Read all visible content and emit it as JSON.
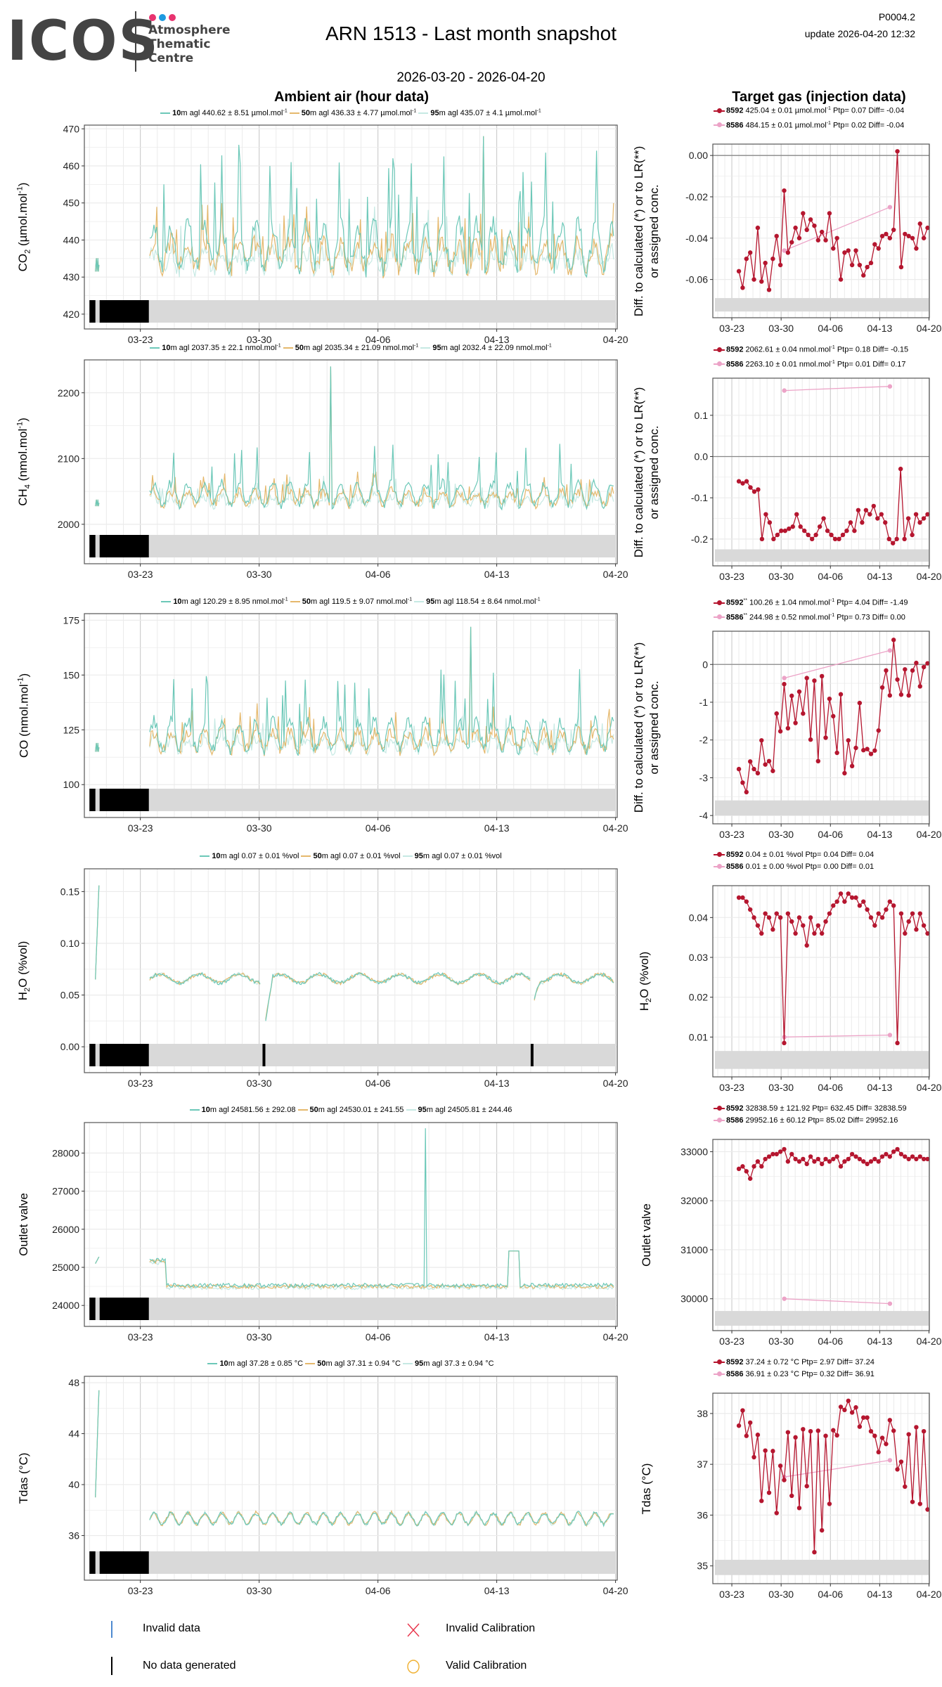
{
  "header": {
    "logo_main": "ICOS",
    "logo_lines": [
      "Atmosphere",
      "Thematic",
      "Centre"
    ],
    "logo_dot_colors": [
      "#e8336f",
      "#1d9ae0",
      "#e8336f"
    ],
    "title": "ARN 1513 - Last month snapshot",
    "code": "P0004.2",
    "update": "update  2026-04-20 12:32",
    "period": "2026-03-20 - 2026-04-20"
  },
  "sections": {
    "ambient_title": "Ambient air (hour data)",
    "target_title": "Target gas (injection data)"
  },
  "colors": {
    "s10": "#6cc8b8",
    "s50": "#e5b86c",
    "s95": "#c6e9e3",
    "t8592": "#b5162f",
    "t8586": "#eca3c7",
    "flagband": "#d9d9d9",
    "grid": "#ebebeb",
    "gridMajor": "#c8c8c8"
  },
  "x_ticks": [
    "03-23",
    "03-30",
    "04-06",
    "04-13",
    "04-20"
  ],
  "panels": [
    {
      "id": "co2",
      "left_ylabel": "CO",
      "left_ylabel_sub": "2",
      "left_ylabel_rest": " (µmol.mol",
      "left_ylabel_sup": "-1",
      "left_ylabel_end": ")",
      "right_ylabel_1": "Diff. to calculated (*) or to LR(**)",
      "right_ylabel_2": "or assigned conc.",
      "legend": [
        {
          "h": "10",
          "t": "m agl 440.62 ± 8.51 µmol.mol",
          "sup": "-1"
        },
        {
          "h": "50",
          "t": "m agl 436.33 ± 4.77 µmol.mol",
          "sup": "-1"
        },
        {
          "h": "95",
          "t": "m agl 435.07 ± 4.1 µmol.mol",
          "sup": "-1"
        }
      ],
      "rlegend": [
        {
          "h": "8592",
          "star": "",
          "t": " 425.04 ± 0.01 µmol.mol",
          "sup": "-1",
          "rest": " Ptp= 0.07 Diff= -0.04"
        },
        {
          "h": "8586",
          "star": "",
          "t": " 484.15 ± 0.01 µmol.mol",
          "sup": "-1",
          "rest": " Ptp= 0.02 Diff= -0.04"
        }
      ],
      "left_yticks": [
        "420",
        "430",
        "440",
        "450",
        "460",
        "470"
      ],
      "left_ylim": [
        416,
        471
      ],
      "left_base": 436,
      "left_amp": 9,
      "left_spike": 468,
      "right_yticks": [
        "-0.06",
        "-0.04",
        "-0.02",
        "0.00"
      ],
      "right_ytick_values": [
        -0.06,
        -0.04,
        -0.02,
        0.0
      ],
      "right_ylim": [
        -0.0785,
        0.0055
      ],
      "right_zero": 0.0,
      "right_band": [
        -0.0755,
        -0.069
      ],
      "t8592": [
        -0.056,
        -0.064,
        -0.05,
        -0.047,
        -0.06,
        -0.035,
        -0.061,
        -0.052,
        -0.065,
        -0.05,
        -0.039,
        -0.053,
        -0.017,
        -0.047,
        -0.042,
        -0.035,
        -0.04,
        -0.028,
        -0.036,
        -0.031,
        -0.034,
        -0.041,
        -0.037,
        -0.041,
        -0.028,
        -0.045,
        -0.04,
        -0.06,
        -0.047,
        -0.046,
        -0.053,
        -0.046,
        -0.053,
        -0.058,
        -0.054,
        -0.052,
        -0.043,
        -0.045,
        -0.039,
        -0.038,
        -0.04,
        -0.036,
        0.002,
        -0.054,
        -0.038,
        -0.039,
        -0.04,
        -0.045,
        -0.033,
        -0.04,
        -0.035
      ],
      "t8586": [
        -0.046,
        -0.025
      ]
    },
    {
      "id": "ch4",
      "left_ylabel": "CH",
      "left_ylabel_sub": "4",
      "left_ylabel_rest": " (nmol.mol",
      "left_ylabel_sup": "-1",
      "left_ylabel_end": ")",
      "right_ylabel_1": "Diff. to calculated (*) or to LR(**)",
      "right_ylabel_2": "or assigned conc.",
      "legend": [
        {
          "h": "10",
          "t": "m agl 2037.35 ± 22.1 nmol.mol",
          "sup": "-1"
        },
        {
          "h": "50",
          "t": "m agl 2035.34 ± 21.09 nmol.mol",
          "sup": "-1"
        },
        {
          "h": "95",
          "t": "m agl 2032.4 ± 22.09 nmol.mol",
          "sup": "-1"
        }
      ],
      "rlegend": [
        {
          "h": "8592",
          "star": "",
          "t": " 2062.61 ± 0.04 nmol.mol",
          "sup": "-1",
          "rest": " Ptp= 0.18 Diff= -0.15"
        },
        {
          "h": "8586",
          "star": "",
          "t": " 2263.10 ± 0.01 nmol.mol",
          "sup": "-1",
          "rest": " Ptp= 0.01 Diff= 0.17"
        }
      ],
      "left_yticks": [
        "2000",
        "2100",
        "2200"
      ],
      "left_ytick_values": [
        2000,
        2100,
        2200
      ],
      "left_ylim": [
        1940,
        2250
      ],
      "left_base": 2040,
      "left_amp": 25,
      "left_spike": 2240,
      "right_yticks": [
        "-0.2",
        "-0.1",
        "0.0",
        "0.1"
      ],
      "right_ytick_values": [
        -0.2,
        -0.1,
        0.0,
        0.1
      ],
      "right_ylim": [
        -0.265,
        0.19
      ],
      "right_zero": 0.0,
      "right_band": [
        -0.255,
        -0.225
      ],
      "t8592": [
        -0.06,
        -0.065,
        -0.06,
        -0.075,
        -0.085,
        -0.08,
        -0.2,
        -0.14,
        -0.16,
        -0.2,
        -0.19,
        -0.18,
        -0.18,
        -0.175,
        -0.17,
        -0.14,
        -0.17,
        -0.18,
        -0.19,
        -0.2,
        -0.19,
        -0.17,
        -0.15,
        -0.18,
        -0.19,
        -0.2,
        -0.2,
        -0.19,
        -0.18,
        -0.16,
        -0.18,
        -0.13,
        -0.16,
        -0.13,
        -0.14,
        -0.12,
        -0.15,
        -0.14,
        -0.16,
        -0.2,
        -0.21,
        -0.2,
        -0.03,
        -0.2,
        -0.15,
        -0.19,
        -0.14,
        -0.16,
        -0.15,
        -0.14
      ],
      "t8586": [
        0.16,
        0.17
      ]
    },
    {
      "id": "co",
      "left_ylabel": "CO (nmol.mol",
      "left_ylabel_sub": "",
      "left_ylabel_rest": "",
      "left_ylabel_sup": "-1",
      "left_ylabel_end": ")",
      "right_ylabel_1": "Diff. to calculated (*) or to LR(**)",
      "right_ylabel_2": "or assigned conc.",
      "legend": [
        {
          "h": "10",
          "t": "m agl 120.29 ± 8.95 nmol.mol",
          "sup": "-1"
        },
        {
          "h": "50",
          "t": "m agl 119.5 ± 9.07 nmol.mol",
          "sup": "-1"
        },
        {
          "h": "95",
          "t": "m agl 118.54 ± 8.64 nmol.mol",
          "sup": "-1"
        }
      ],
      "rlegend": [
        {
          "h": "8592",
          "star": "**",
          "t": " 100.26 ± 1.04 nmol.mol",
          "sup": "-1",
          "rest": " Ptp= 4.04 Diff= -1.49"
        },
        {
          "h": "8586",
          "star": "**",
          "t": " 244.98 ± 0.52 nmol.mol",
          "sup": "-1",
          "rest": " Ptp= 0.73 Diff= 0.00"
        }
      ],
      "left_yticks": [
        "100",
        "125",
        "150",
        "175"
      ],
      "left_ytick_values": [
        100,
        125,
        150,
        175
      ],
      "left_ylim": [
        85,
        178
      ],
      "left_base": 120,
      "left_amp": 10,
      "left_spike": 172,
      "right_yticks": [
        "-4",
        "-3",
        "-2",
        "-1",
        "0"
      ],
      "right_ytick_values": [
        -4,
        -3,
        -2,
        -1,
        0
      ],
      "right_ylim": [
        -4.22,
        0.88
      ],
      "right_zero": 0,
      "right_band": [
        -4.0,
        -3.6
      ],
      "t8592": [
        -2.77,
        -3.13,
        -3.38,
        -2.57,
        -2.77,
        -2.88,
        -2.01,
        -2.65,
        -2.56,
        -2.82,
        -1.3,
        -1.77,
        -0.52,
        -1.69,
        -0.83,
        -1.55,
        -0.72,
        -1.3,
        -0.36,
        -1.99,
        -0.43,
        -2.56,
        -0.31,
        -1.94,
        -0.91,
        -1.37,
        -2.34,
        -0.79,
        -2.88,
        -2.01,
        -2.69,
        -2.21,
        -1.02,
        -2.27,
        -2.24,
        -2.37,
        -2.28,
        -1.75,
        -0.61,
        -0.16,
        -0.82,
        0.65,
        -0.4,
        -0.8,
        -0.13,
        -0.82,
        -0.16,
        0.04,
        -0.58,
        -0.07,
        0.03
      ],
      "t8586": [
        -0.36,
        0.37
      ]
    },
    {
      "id": "h2o",
      "left_ylabel": "H",
      "left_ylabel_sub": "2",
      "left_ylabel_rest": "O (%vol)",
      "left_ylabel_sup": "",
      "left_ylabel_end": "",
      "right_ylabel_1": "H",
      "right_ylabel_sub": "2",
      "right_ylabel_2": "O (%vol)",
      "legend": [
        {
          "h": "10",
          "t": "m agl 0.07 ± 0.01 %vol",
          "sup": ""
        },
        {
          "h": "50",
          "t": "m agl 0.07 ± 0.01 %vol",
          "sup": ""
        },
        {
          "h": "95",
          "t": "m agl 0.07 ± 0.01 %vol",
          "sup": ""
        }
      ],
      "rlegend": [
        {
          "h": "8592",
          "star": "",
          "t": " 0.04 ± 0.01 %vol Ptp= 0.04 Diff= 0.04",
          "sup": "",
          "rest": ""
        },
        {
          "h": "8586",
          "star": "",
          "t": " 0.01 ± 0.00 %vol Ptp= 0.00 Diff= 0.01",
          "sup": "",
          "rest": ""
        }
      ],
      "left_yticks": [
        "0.00",
        "0.05",
        "0.10",
        "0.15"
      ],
      "left_ytick_values": [
        0,
        0.05,
        0.1,
        0.15
      ],
      "left_ylim": [
        -0.025,
        0.172
      ],
      "left_base": 0.066,
      "left_amp": 0.006,
      "left_spike": 0.163,
      "right_yticks": [
        "0.01",
        "0.02",
        "0.03",
        "0.04"
      ],
      "right_ytick_values": [
        0.01,
        0.02,
        0.03,
        0.04
      ],
      "right_ylim": [
        0.0,
        0.048
      ],
      "right_zero": null,
      "right_band": [
        0.002,
        0.0065
      ],
      "t8592": [
        0.045,
        0.045,
        0.044,
        0.042,
        0.04,
        0.038,
        0.036,
        0.041,
        0.04,
        0.037,
        0.041,
        0.04,
        0.0085,
        0.041,
        0.039,
        0.036,
        0.04,
        0.038,
        0.033,
        0.04,
        0.036,
        0.038,
        0.036,
        0.039,
        0.041,
        0.043,
        0.044,
        0.046,
        0.044,
        0.046,
        0.045,
        0.045,
        0.043,
        0.044,
        0.042,
        0.04,
        0.038,
        0.041,
        0.04,
        0.042,
        0.044,
        0.043,
        0.0085,
        0.041,
        0.036,
        0.039,
        0.041,
        0.037,
        0.041,
        0.038,
        0.036
      ],
      "t8586": [
        0.01,
        0.0105
      ]
    },
    {
      "id": "outlet",
      "left_ylabel": "Outlet valve",
      "left_ylabel_sub": "",
      "left_ylabel_rest": "",
      "left_ylabel_sup": "",
      "left_ylabel_end": "",
      "right_ylabel_1": "Outlet valve",
      "right_ylabel_2": "",
      "legend": [
        {
          "h": "10",
          "t": "m agl 24581.56 ± 292.08",
          "sup": ""
        },
        {
          "h": "50",
          "t": "m agl 24530.01 ± 241.55",
          "sup": ""
        },
        {
          "h": "95",
          "t": "m agl 24505.81 ± 244.46",
          "sup": ""
        }
      ],
      "rlegend": [
        {
          "h": "8592",
          "star": "",
          "t": " 32838.59 ± 121.92  Ptp= 632.45 Diff= 32838.59",
          "sup": "",
          "rest": ""
        },
        {
          "h": "8586",
          "star": "",
          "t": " 29952.16 ± 60.12  Ptp= 85.02 Diff= 29952.16",
          "sup": "",
          "rest": ""
        }
      ],
      "left_yticks": [
        "24000",
        "25000",
        "26000",
        "27000",
        "28000"
      ],
      "left_ytick_values": [
        24000,
        25000,
        26000,
        27000,
        28000
      ],
      "left_ylim": [
        23450,
        28800
      ],
      "left_base": 24530,
      "left_amp": 90,
      "left_spike": 28650,
      "right_yticks": [
        "30000",
        "31000",
        "32000",
        "33000"
      ],
      "right_ytick_values": [
        30000,
        31000,
        32000,
        33000
      ],
      "right_ylim": [
        29350,
        33250
      ],
      "right_zero": null,
      "right_band": [
        29450,
        29750
      ],
      "t8592": [
        32650,
        32700,
        32600,
        32450,
        32700,
        32800,
        32700,
        32850,
        32900,
        32950,
        32950,
        33000,
        33050,
        32800,
        32950,
        32850,
        32800,
        32850,
        32750,
        32900,
        32800,
        32850,
        32750,
        32850,
        32800,
        32850,
        32900,
        32700,
        32800,
        32850,
        32950,
        32900,
        32850,
        32800,
        32750,
        32800,
        32850,
        32800,
        32900,
        32950,
        32900,
        33000,
        33050,
        32950,
        32900,
        32850,
        32900,
        32850,
        32900,
        32850,
        32850
      ],
      "t8586": [
        30000,
        29900
      ]
    },
    {
      "id": "tdas",
      "left_ylabel": "Tdas (°C)",
      "left_ylabel_sub": "",
      "left_ylabel_rest": "",
      "left_ylabel_sup": "",
      "left_ylabel_end": "",
      "right_ylabel_1": "Tdas (°C)",
      "right_ylabel_2": "",
      "legend": [
        {
          "h": "10",
          "t": "m agl 37.28 ± 0.85 °C",
          "sup": ""
        },
        {
          "h": "50",
          "t": "m agl 37.31 ± 0.94 °C",
          "sup": ""
        },
        {
          "h": "95",
          "t": "m agl 37.3 ± 0.94 °C",
          "sup": ""
        }
      ],
      "rlegend": [
        {
          "h": "8592",
          "star": "",
          "t": " 37.24 ± 0.72 °C Ptp= 2.97 Diff= 37.24",
          "sup": "",
          "rest": ""
        },
        {
          "h": "8586",
          "star": "",
          "t": " 36.91 ± 0.23 °C Ptp= 0.32 Diff= 36.91",
          "sup": "",
          "rest": ""
        }
      ],
      "left_yticks": [
        "36",
        "40",
        "44",
        "48"
      ],
      "left_ytick_values": [
        36,
        40,
        44,
        48
      ],
      "left_ylim": [
        32.5,
        48.5
      ],
      "left_base": 37.2,
      "left_amp": 0.8,
      "left_spike": 47.5,
      "right_yticks": [
        "35",
        "36",
        "37",
        "38"
      ],
      "right_ytick_values": [
        35,
        36,
        37,
        38
      ],
      "right_ylim": [
        34.65,
        38.4
      ],
      "right_zero": null,
      "right_band": [
        34.82,
        35.12
      ],
      "t8592": [
        37.76,
        38.06,
        37.56,
        37.82,
        37.14,
        37.58,
        36.28,
        37.27,
        36.44,
        37.26,
        36.04,
        36.97,
        36.69,
        37.63,
        36.38,
        37.53,
        36.14,
        37.69,
        36.57,
        37.65,
        35.27,
        37.66,
        35.7,
        37.56,
        36.22,
        37.67,
        37.57,
        38.13,
        38.07,
        38.25,
        38.02,
        38.12,
        37.74,
        37.92,
        37.92,
        37.65,
        37.56,
        37.24,
        37.52,
        37.4,
        37.87,
        37.66,
        36.9,
        37.05,
        36.56,
        37.59,
        36.26,
        37.73,
        36.22,
        37.65,
        36.11
      ],
      "t8586": [
        36.75,
        37.08
      ]
    }
  ],
  "footer": {
    "invalid_data": "Invalid data",
    "no_data": "No data generated",
    "invalid_cal": "Invalid Calibration",
    "valid_cal": "Valid Calibration",
    "invalid_data_color": "#4e8ad0",
    "no_data_color": "#000000",
    "invalid_cal_color": "#e8334a",
    "valid_cal_color": "#f0b030"
  },
  "chart_data": [
    {
      "type": "line",
      "title": "Ambient air (hour data) - CO2",
      "ylabel": "CO2 (µmol.mol-1)",
      "ylim": [
        416,
        471
      ],
      "xlabel": "",
      "x_range": [
        "2026-03-20",
        "2026-04-20"
      ]
    },
    {
      "type": "line",
      "title": "Ambient air (hour data) - CH4",
      "ylabel": "CH4 (nmol.mol-1)",
      "ylim": [
        1940,
        2250
      ]
    },
    {
      "type": "line",
      "title": "Ambient air (hour data) - CO",
      "ylabel": "CO (nmol.mol-1)",
      "ylim": [
        85,
        178
      ]
    },
    {
      "type": "line",
      "title": "Ambient air (hour data) - H2O",
      "ylabel": "H2O (%vol)",
      "ylim": [
        -0.025,
        0.172
      ]
    },
    {
      "type": "line",
      "title": "Ambient air (hour data) - Outlet valve",
      "ylabel": "Outlet valve",
      "ylim": [
        23450,
        28800
      ]
    },
    {
      "type": "line",
      "title": "Ambient air (hour data) - Tdas",
      "ylabel": "Tdas (°C)",
      "ylim": [
        32.5,
        48.5
      ]
    },
    {
      "type": "scatter",
      "title": "Target gas (injection data)",
      "note": "series 8592 and 8586 per panel in panels[].t8592 / panels[].t8586"
    }
  ]
}
